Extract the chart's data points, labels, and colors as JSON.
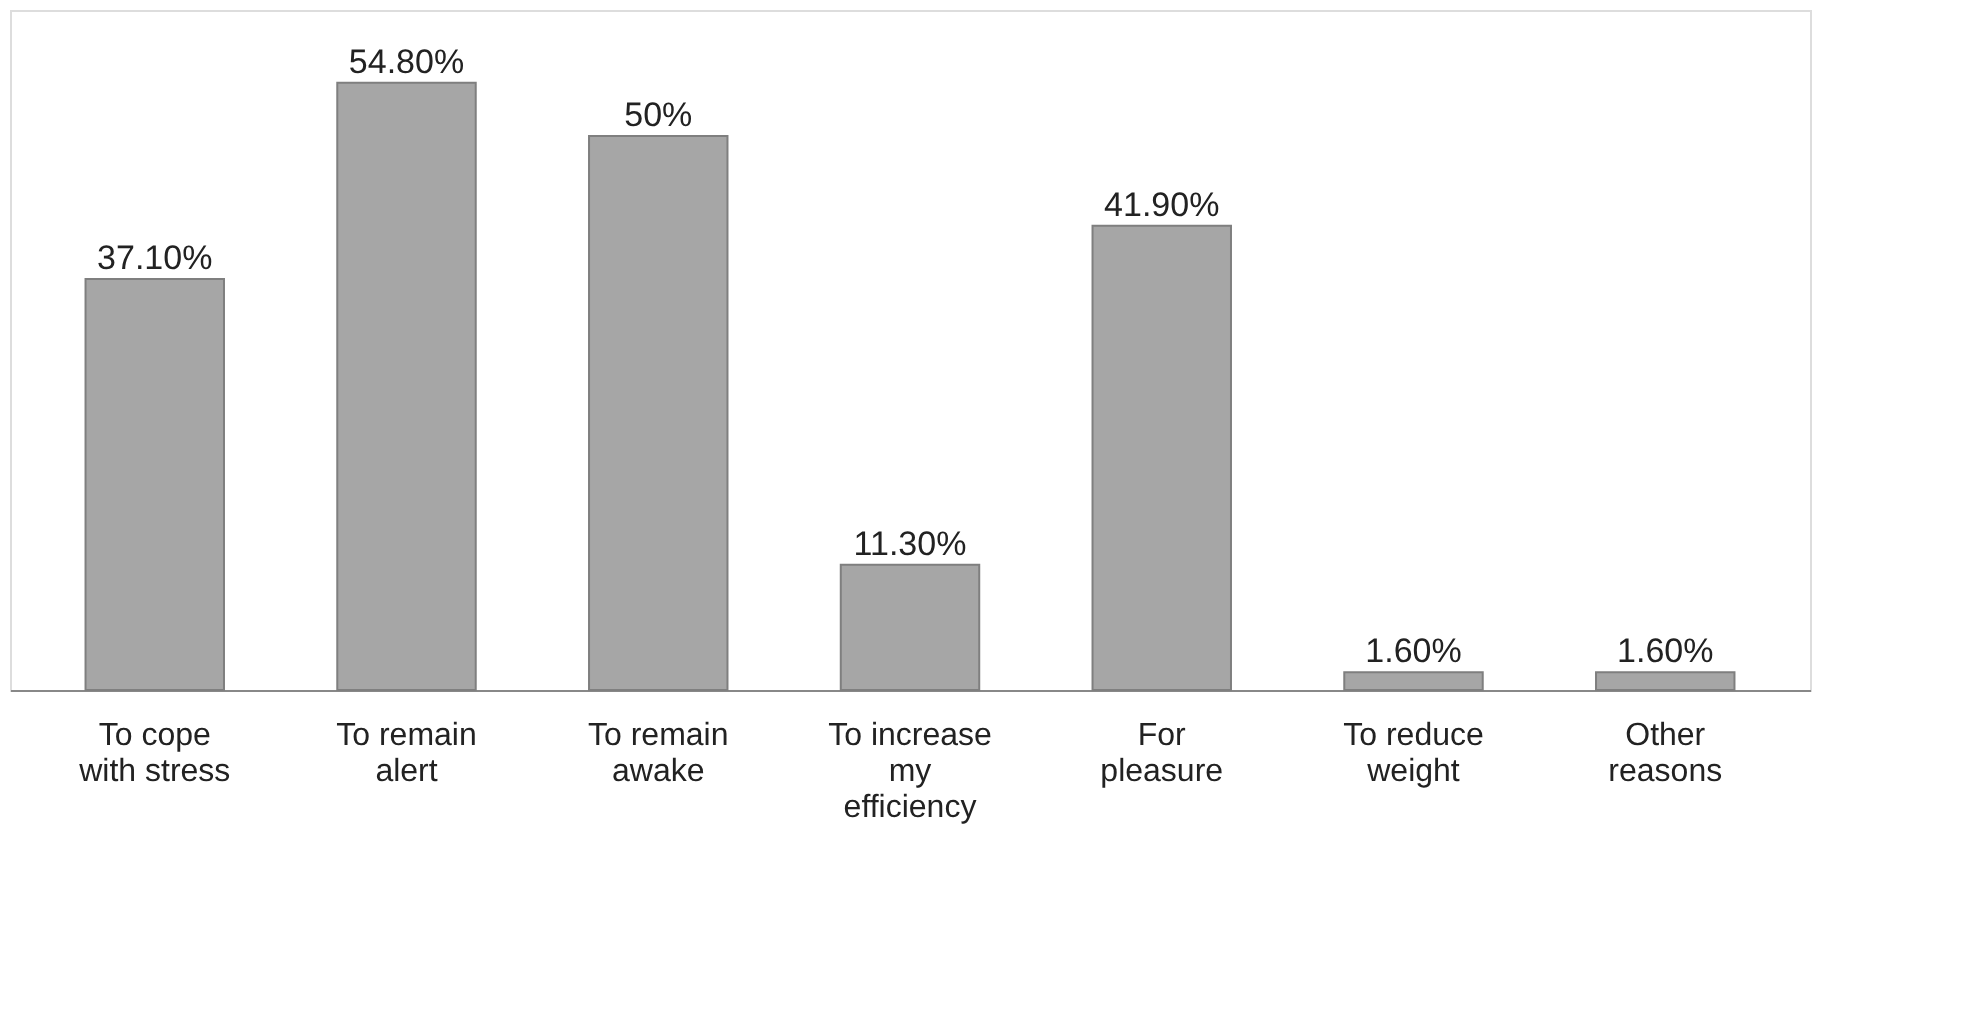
{
  "chart_data": {
    "type": "bar",
    "categories": [
      "To cope with stress",
      "To remain alert",
      "To remain awake",
      "To increase my efficiency",
      "For pleasure",
      "To reduce weight",
      "Other reasons"
    ],
    "values": [
      37.1,
      54.8,
      50,
      11.3,
      41.9,
      1.6,
      1.6
    ],
    "value_labels": [
      "37.10%",
      "54.80%",
      "50%",
      "11.30%",
      "41.90%",
      "1.60%",
      "1.60%"
    ],
    "color": "#a6a6a6"
  }
}
